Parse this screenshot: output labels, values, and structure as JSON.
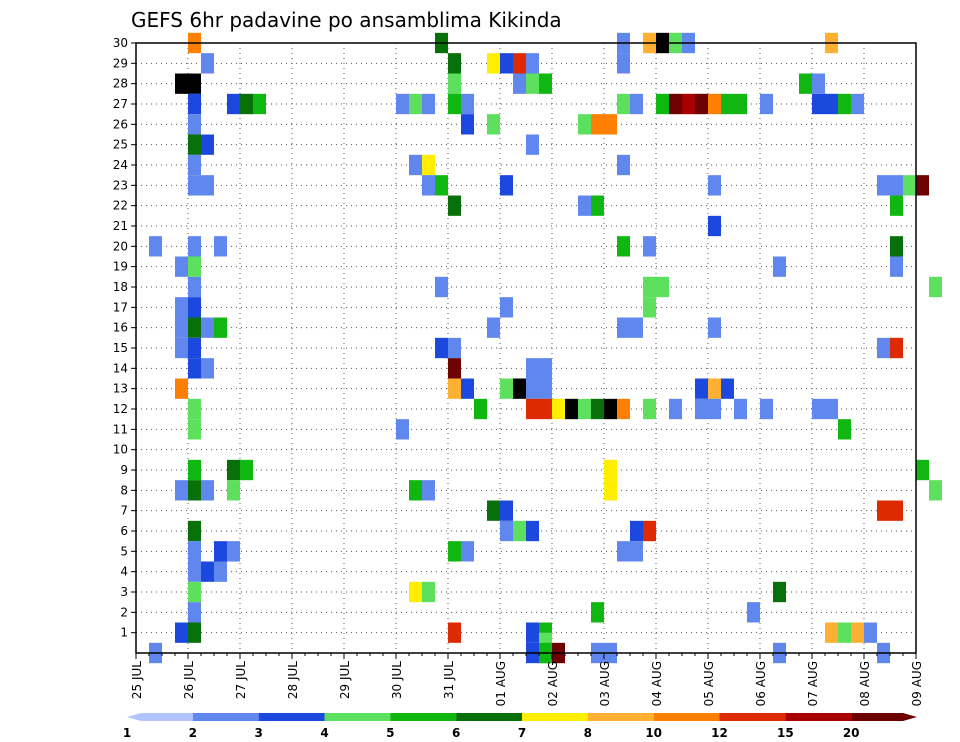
{
  "chart_data": {
    "type": "heatmap",
    "title": "GEFS 6hr padavine po ansamblima Kikinda",
    "xlabel": "",
    "ylabel": "",
    "x_tick_labels": [
      "25 JUL",
      "26 JUL",
      "27 JUL",
      "28 JUL",
      "29 JUL",
      "30 JUL",
      "31 JUL",
      "01 AUG",
      "02 AUG",
      "03 AUG",
      "04 AUG",
      "05 AUG",
      "06 AUG",
      "07 AUG",
      "08 AUG",
      "09 AUG"
    ],
    "y_tick_labels": [
      "1",
      "2",
      "3",
      "4",
      "5",
      "6",
      "7",
      "8",
      "9",
      "10",
      "11",
      "12",
      "13",
      "14",
      "15",
      "16",
      "17",
      "18",
      "19",
      "20",
      "21",
      "22",
      "23",
      "24",
      "25",
      "26",
      "27",
      "28",
      "29",
      "30"
    ],
    "x_range_days": [
      0,
      15
    ],
    "y_range": [
      0,
      30
    ],
    "grid": true,
    "colorbar": {
      "levels": [
        1,
        2,
        3,
        4,
        5,
        6,
        7,
        8,
        10,
        12,
        15,
        20
      ],
      "colors": [
        "#b0c4ff",
        "#5f87ee",
        "#1c49dd",
        "#5de05d",
        "#11b711",
        "#087008",
        "#ffee00",
        "#ffb030",
        "#ff7f00",
        "#dd2a00",
        "#a80000",
        "#6d0000"
      ]
    },
    "cells": [
      [
        1,
        30,
        8
      ],
      [
        1,
        28,
        12
      ],
      [
        0.75,
        28,
        13
      ],
      [
        1,
        27,
        2
      ],
      [
        1.25,
        29,
        1
      ],
      [
        1,
        26,
        1
      ],
      [
        1,
        25,
        5
      ],
      [
        1.25,
        25,
        2
      ],
      [
        1,
        24,
        1
      ],
      [
        1,
        23,
        1
      ],
      [
        1.25,
        23,
        1
      ],
      [
        1,
        20,
        1
      ],
      [
        1.5,
        20,
        1
      ],
      [
        0.25,
        20,
        1
      ],
      [
        1,
        19,
        3
      ],
      [
        0.75,
        19,
        1
      ],
      [
        1,
        18,
        1
      ],
      [
        1,
        17,
        2
      ],
      [
        0.75,
        17,
        1
      ],
      [
        1,
        16,
        5
      ],
      [
        0.75,
        16,
        1
      ],
      [
        1.25,
        16,
        1
      ],
      [
        1.5,
        16,
        4
      ],
      [
        0.75,
        15,
        1
      ],
      [
        1,
        15,
        2
      ],
      [
        1,
        14,
        2
      ],
      [
        1.25,
        14,
        1
      ],
      [
        0.75,
        13,
        8
      ],
      [
        1,
        12,
        3
      ],
      [
        1,
        11,
        3
      ],
      [
        1,
        9,
        4
      ],
      [
        1,
        8,
        5
      ],
      [
        0.75,
        8,
        1
      ],
      [
        1.25,
        8,
        1
      ],
      [
        1,
        6,
        5
      ],
      [
        1,
        5,
        1
      ],
      [
        1.5,
        5,
        2
      ],
      [
        1.75,
        5,
        1
      ],
      [
        1,
        4,
        1
      ],
      [
        1.25,
        4,
        2
      ],
      [
        1.5,
        4,
        1
      ],
      [
        1,
        3,
        3
      ],
      [
        1,
        2,
        1
      ],
      [
        1,
        1,
        5
      ],
      [
        0.75,
        1,
        2
      ],
      [
        0.25,
        0,
        1
      ],
      [
        1.75,
        27,
        2
      ],
      [
        2,
        27,
        5
      ],
      [
        2.25,
        27,
        4
      ],
      [
        1.75,
        9,
        5
      ],
      [
        2,
        9,
        4
      ],
      [
        1.75,
        8,
        3
      ],
      [
        5,
        27,
        1
      ],
      [
        5.25,
        27,
        3
      ],
      [
        5.5,
        27,
        1
      ],
      [
        5.25,
        24,
        1
      ],
      [
        5.5,
        24,
        6
      ],
      [
        5.5,
        23,
        1
      ],
      [
        5.75,
        23,
        4
      ],
      [
        5,
        11,
        1
      ],
      [
        5.25,
        8,
        4
      ],
      [
        5.5,
        8,
        1
      ],
      [
        5.25,
        3,
        6
      ],
      [
        5.5,
        3,
        3
      ],
      [
        5.75,
        30,
        5
      ],
      [
        6,
        29,
        5
      ],
      [
        6,
        28,
        3
      ],
      [
        6,
        27,
        4
      ],
      [
        6.25,
        27,
        1
      ],
      [
        6,
        22,
        5
      ],
      [
        6.25,
        26,
        2
      ],
      [
        5.75,
        18,
        1
      ],
      [
        5.75,
        15,
        2
      ],
      [
        6,
        15,
        1
      ],
      [
        6,
        14,
        11
      ],
      [
        6,
        13,
        7
      ],
      [
        6.25,
        13,
        2
      ],
      [
        6,
        5,
        4
      ],
      [
        6.25,
        5,
        1
      ],
      [
        6,
        1,
        9
      ],
      [
        6.75,
        29,
        6
      ],
      [
        7,
        29,
        2
      ],
      [
        7.25,
        29,
        9
      ],
      [
        7.25,
        28,
        1
      ],
      [
        6.75,
        26,
        3
      ],
      [
        7,
        23,
        2
      ],
      [
        6.5,
        12,
        4
      ],
      [
        7,
        13,
        3
      ],
      [
        7.25,
        13,
        12
      ],
      [
        6.75,
        7,
        5
      ],
      [
        7,
        7,
        2
      ],
      [
        7,
        6,
        1
      ],
      [
        7.25,
        6,
        3
      ],
      [
        7.5,
        6,
        2
      ],
      [
        7,
        17,
        1
      ],
      [
        6.75,
        16,
        1
      ],
      [
        7.5,
        29,
        1
      ],
      [
        7.5,
        28,
        3
      ],
      [
        7.75,
        28,
        4
      ],
      [
        7.5,
        25,
        1
      ],
      [
        7.75,
        14,
        1
      ],
      [
        7.5,
        14,
        1
      ],
      [
        7.75,
        13,
        1
      ],
      [
        7.5,
        13,
        1
      ],
      [
        7.5,
        12,
        9
      ],
      [
        7.75,
        12,
        9
      ],
      [
        8,
        12,
        6
      ],
      [
        8.25,
        12,
        12
      ],
      [
        8.5,
        12,
        3
      ],
      [
        8.75,
        12,
        5
      ],
      [
        9,
        12,
        12
      ],
      [
        9.25,
        12,
        8
      ],
      [
        7.5,
        1,
        2
      ],
      [
        7.75,
        1,
        4
      ],
      [
        7.5,
        0,
        2
      ],
      [
        7.75,
        0,
        5
      ],
      [
        7.75,
        0.5,
        3
      ],
      [
        8,
        0,
        11
      ],
      [
        7.75,
        0,
        4
      ],
      [
        8.5,
        26,
        3
      ],
      [
        8.75,
        26,
        8
      ],
      [
        9,
        26,
        8
      ],
      [
        8.5,
        22,
        1
      ],
      [
        8.75,
        22,
        4
      ],
      [
        8.75,
        0,
        1
      ],
      [
        9,
        0,
        1
      ],
      [
        8.75,
        2,
        4
      ],
      [
        9.25,
        29,
        1
      ],
      [
        9.25,
        30,
        1
      ],
      [
        9.25,
        27,
        3
      ],
      [
        9.5,
        27,
        1
      ],
      [
        9.25,
        24,
        1
      ],
      [
        9.25,
        20,
        4
      ],
      [
        9.25,
        16,
        1
      ],
      [
        9.5,
        16,
        1
      ],
      [
        9,
        8,
        6
      ],
      [
        9,
        9,
        6
      ],
      [
        9.5,
        6,
        2
      ],
      [
        9.75,
        6,
        9
      ],
      [
        9.25,
        5,
        1
      ],
      [
        9.5,
        5,
        1
      ],
      [
        9.75,
        30,
        7
      ],
      [
        10,
        30,
        12
      ],
      [
        10.25,
        30,
        3
      ],
      [
        10.5,
        30,
        1
      ],
      [
        9.75,
        20,
        1
      ],
      [
        9.75,
        18,
        3
      ],
      [
        10,
        18,
        3
      ],
      [
        9.75,
        17,
        3
      ],
      [
        9.75,
        12,
        3
      ],
      [
        10.25,
        12,
        1
      ],
      [
        10,
        27,
        4
      ],
      [
        10.25,
        27,
        11
      ],
      [
        10.5,
        27,
        10
      ],
      [
        10.75,
        27,
        11
      ],
      [
        11,
        27,
        8
      ],
      [
        11.25,
        27,
        4
      ],
      [
        11.5,
        27,
        4
      ],
      [
        11,
        23,
        1
      ],
      [
        11,
        21,
        2
      ],
      [
        11,
        16,
        1
      ],
      [
        10.75,
        13,
        2
      ],
      [
        11,
        13,
        7
      ],
      [
        11.25,
        13,
        2
      ],
      [
        10.75,
        12,
        1
      ],
      [
        11,
        12,
        1
      ],
      [
        11.5,
        12,
        1
      ],
      [
        12,
        27,
        1
      ],
      [
        12.25,
        19,
        1
      ],
      [
        11.75,
        2,
        1
      ],
      [
        12,
        12,
        1
      ],
      [
        12.25,
        3,
        5
      ],
      [
        12.25,
        0,
        1
      ],
      [
        13.25,
        30,
        7
      ],
      [
        13,
        27,
        2
      ],
      [
        13.25,
        27,
        2
      ],
      [
        13.5,
        27,
        4
      ],
      [
        13.75,
        27,
        1
      ],
      [
        12.75,
        28,
        4
      ],
      [
        13,
        28,
        1
      ],
      [
        13.25,
        1,
        7
      ],
      [
        13.5,
        1,
        3
      ],
      [
        13.75,
        1,
        7
      ],
      [
        14,
        1,
        1
      ],
      [
        13,
        12,
        1
      ],
      [
        13.25,
        12,
        1
      ],
      [
        13.5,
        11,
        4
      ],
      [
        14.25,
        23,
        1
      ],
      [
        14.5,
        23,
        1
      ],
      [
        14.75,
        23,
        3
      ],
      [
        15,
        23,
        11
      ],
      [
        14.5,
        22,
        4
      ],
      [
        14.5,
        20,
        5
      ],
      [
        14.5,
        19,
        1
      ],
      [
        14.25,
        15,
        1
      ],
      [
        14.5,
        15,
        9
      ],
      [
        14.25,
        7,
        9
      ],
      [
        14.5,
        7,
        9
      ],
      [
        15,
        9,
        4
      ],
      [
        15.25,
        8,
        3
      ],
      [
        15.25,
        18,
        3
      ],
      [
        14.25,
        0,
        1
      ]
    ]
  }
}
